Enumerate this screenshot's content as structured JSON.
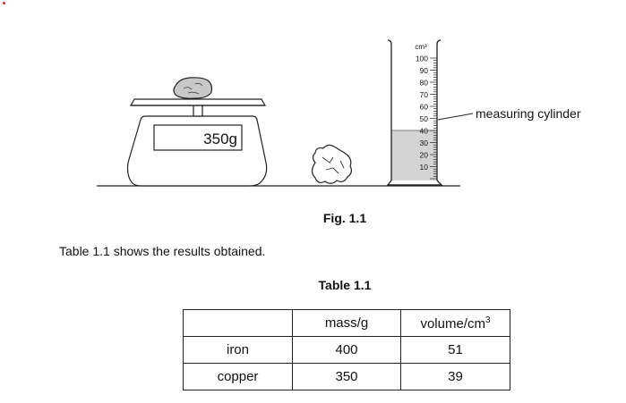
{
  "figure": {
    "balance_reading": "350g",
    "cylinder_unit": "cm³",
    "cylinder_scale": [
      "100",
      "90",
      "80",
      "70",
      "60",
      "50",
      "40",
      "30",
      "20",
      "10"
    ],
    "cylinder_label": "measuring cylinder",
    "caption": "Fig. 1.1"
  },
  "text": {
    "intro": "Table 1.1 shows the results obtained."
  },
  "table": {
    "caption": "Table 1.1",
    "headers": {
      "blank": "",
      "mass": "mass/g",
      "volume": "volume/cm",
      "volume_exp": "3"
    },
    "rows": [
      {
        "material": "iron",
        "mass": "400",
        "volume": "51"
      },
      {
        "material": "copper",
        "mass": "350",
        "volume": "39"
      }
    ]
  }
}
